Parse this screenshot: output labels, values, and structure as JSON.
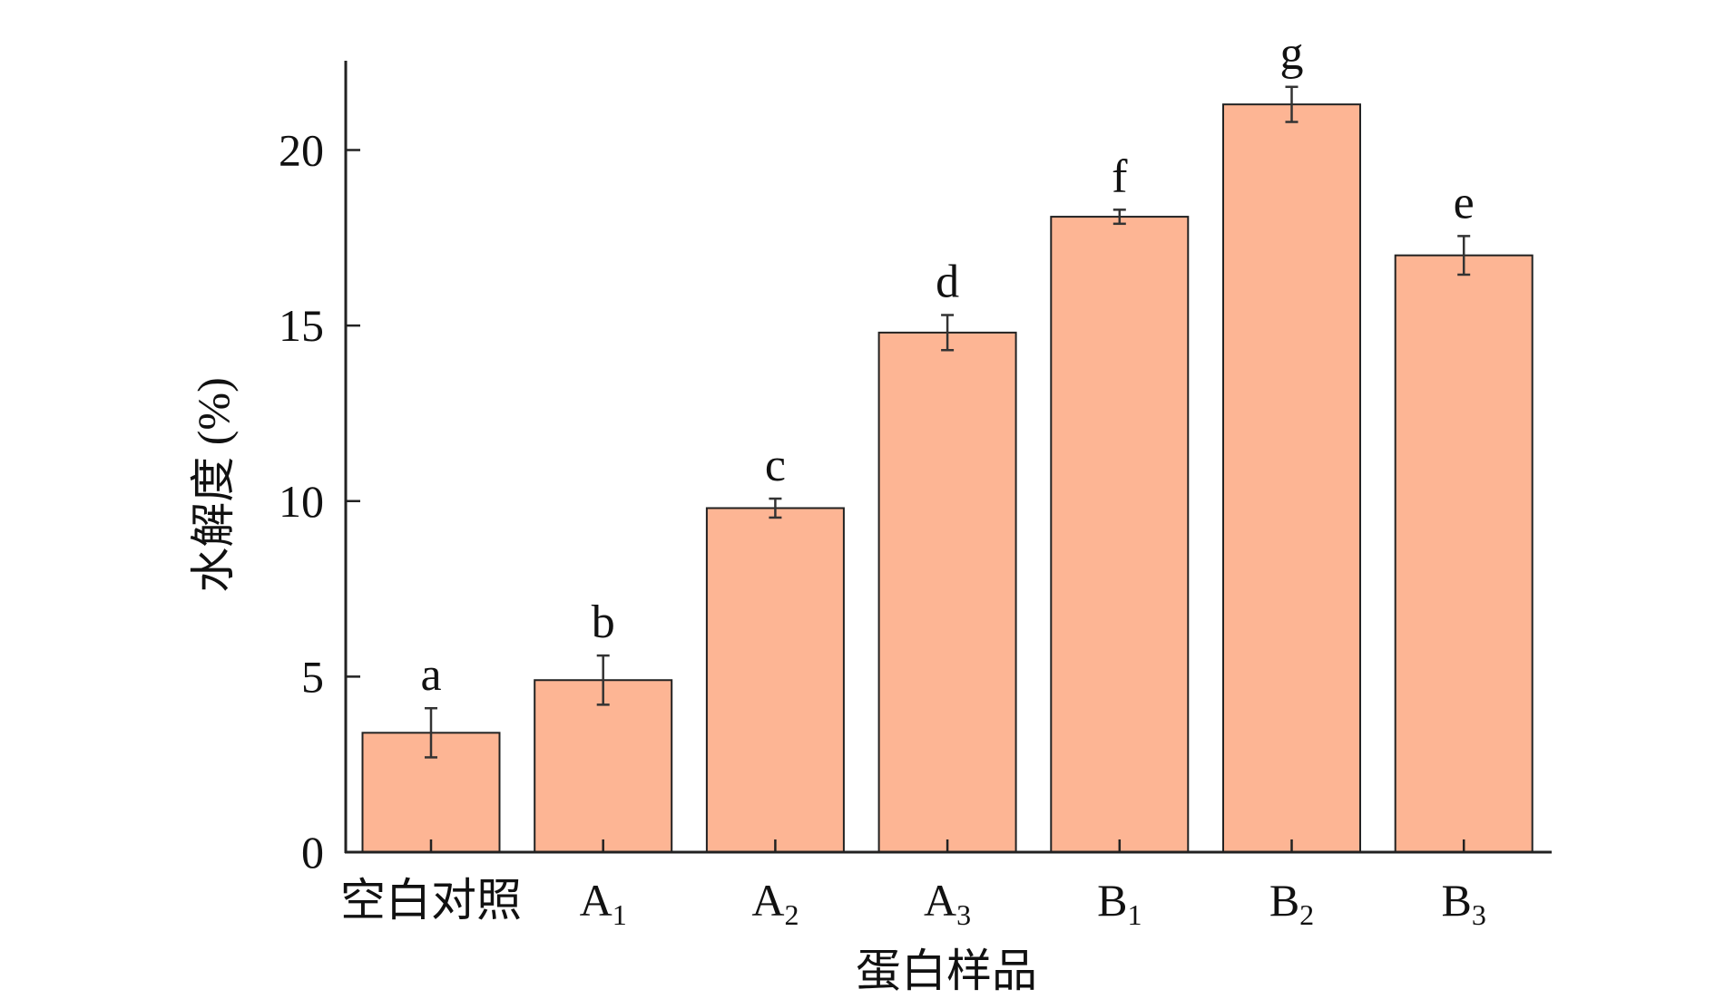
{
  "chart_data": {
    "type": "bar",
    "title": "",
    "xlabel": "蛋白样品",
    "ylabel": "水解度 (%)",
    "ylim": [
      0,
      22.6
    ],
    "yticks": [
      0,
      5,
      10,
      15,
      20
    ],
    "categories": [
      {
        "base": "空白对照",
        "sub": ""
      },
      {
        "base": "A",
        "sub": "1"
      },
      {
        "base": "A",
        "sub": "2"
      },
      {
        "base": "A",
        "sub": "3"
      },
      {
        "base": "B",
        "sub": "1"
      },
      {
        "base": "B",
        "sub": "2"
      },
      {
        "base": "B",
        "sub": "3"
      }
    ],
    "values": [
      3.4,
      4.9,
      9.8,
      14.8,
      18.1,
      21.3,
      17.0
    ],
    "errors": [
      0.7,
      0.7,
      0.27,
      0.5,
      0.2,
      0.5,
      0.55
    ],
    "significance_labels": [
      "a",
      "b",
      "c",
      "d",
      "f",
      "g",
      "e"
    ],
    "bar_color": "#fdb594",
    "grid": false,
    "legend": "none"
  }
}
